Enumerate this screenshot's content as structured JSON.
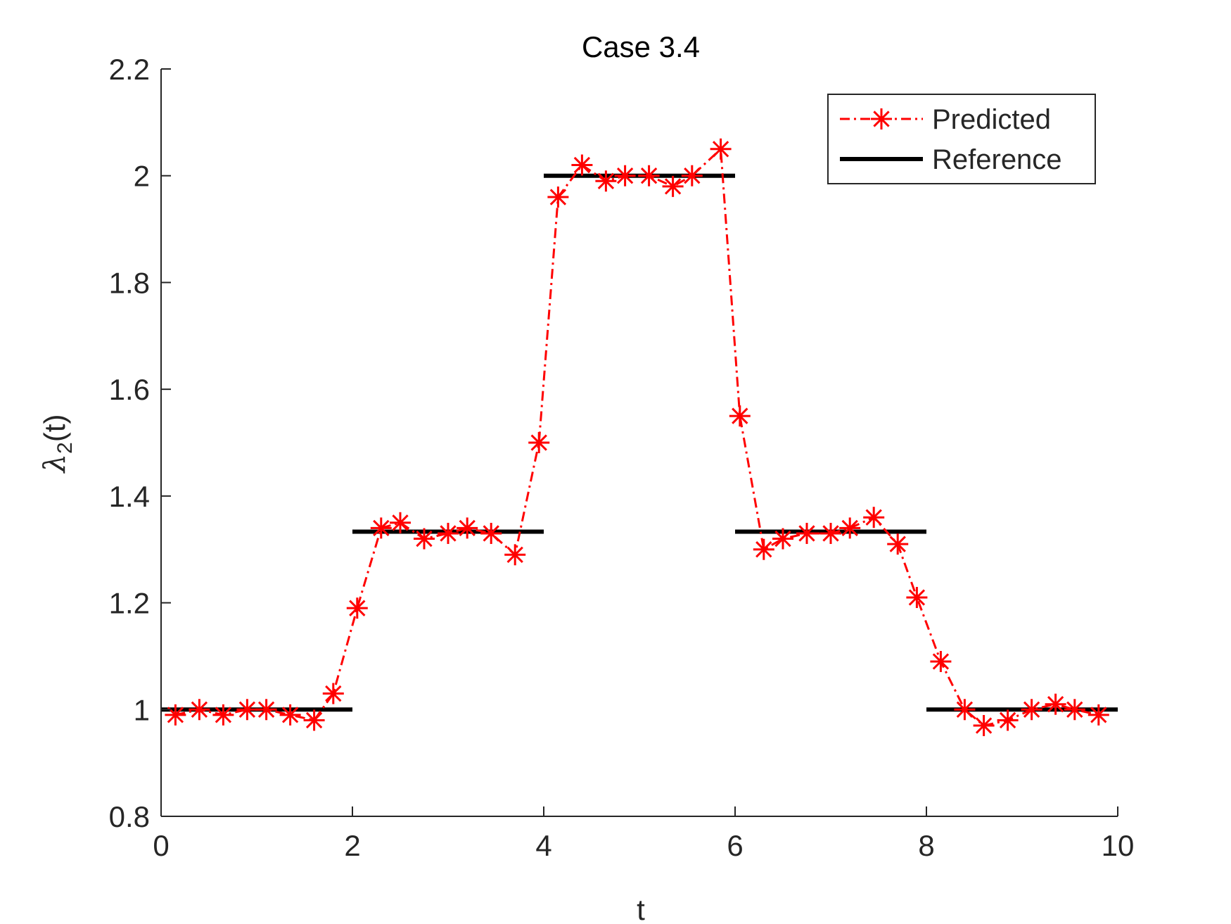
{
  "chart_data": {
    "type": "line",
    "title": "Case 3.4",
    "xlabel": "t",
    "ylabel_base": "λ",
    "ylabel_sub": "2",
    "ylabel_suffix": "(t)",
    "xlim": [
      0,
      10
    ],
    "ylim": [
      0.8,
      2.2
    ],
    "x_ticks": [
      0,
      2,
      4,
      6,
      8,
      10
    ],
    "x_tick_labels": [
      "0",
      "2",
      "4",
      "6",
      "8",
      "10"
    ],
    "y_ticks": [
      0.8,
      1.0,
      1.2,
      1.4,
      1.6,
      1.8,
      2.0,
      2.2
    ],
    "y_tick_labels": [
      "0.8",
      "1",
      "1.2",
      "1.4",
      "1.6",
      "1.8",
      "2",
      "2.2"
    ],
    "grid": false,
    "legend_position": "top-right",
    "series": [
      {
        "name": "Predicted",
        "color": "#ff0000",
        "line_style": "dash-dot",
        "marker": "asterisk",
        "x": [
          0.15,
          0.4,
          0.65,
          0.9,
          1.1,
          1.35,
          1.6,
          1.8,
          2.05,
          2.3,
          2.5,
          2.75,
          3.0,
          3.2,
          3.45,
          3.7,
          3.95,
          4.15,
          4.4,
          4.65,
          4.85,
          5.1,
          5.35,
          5.55,
          5.85,
          6.05,
          6.3,
          6.5,
          6.75,
          7.0,
          7.2,
          7.45,
          7.7,
          7.9,
          8.15,
          8.4,
          8.6,
          8.85,
          9.1,
          9.35,
          9.55,
          9.8
        ],
        "y": [
          0.99,
          1.0,
          0.99,
          1.0,
          1.0,
          0.99,
          0.98,
          1.03,
          1.19,
          1.34,
          1.35,
          1.32,
          1.33,
          1.34,
          1.33,
          1.29,
          1.5,
          1.96,
          2.02,
          1.99,
          2.0,
          2.0,
          1.98,
          2.0,
          2.05,
          1.55,
          1.3,
          1.32,
          1.33,
          1.33,
          1.34,
          1.36,
          1.31,
          1.21,
          1.09,
          1.0,
          0.97,
          0.98,
          1.0,
          1.01,
          1.0,
          0.99
        ]
      },
      {
        "name": "Reference",
        "color": "#000000",
        "line_style": "solid",
        "segments": [
          {
            "x": [
              0,
              2
            ],
            "y": 1.0
          },
          {
            "x": [
              2,
              4
            ],
            "y": 1.3333
          },
          {
            "x": [
              4,
              6
            ],
            "y": 2.0
          },
          {
            "x": [
              6,
              8
            ],
            "y": 1.3333
          },
          {
            "x": [
              8,
              10
            ],
            "y": 1.0
          }
        ]
      }
    ]
  }
}
